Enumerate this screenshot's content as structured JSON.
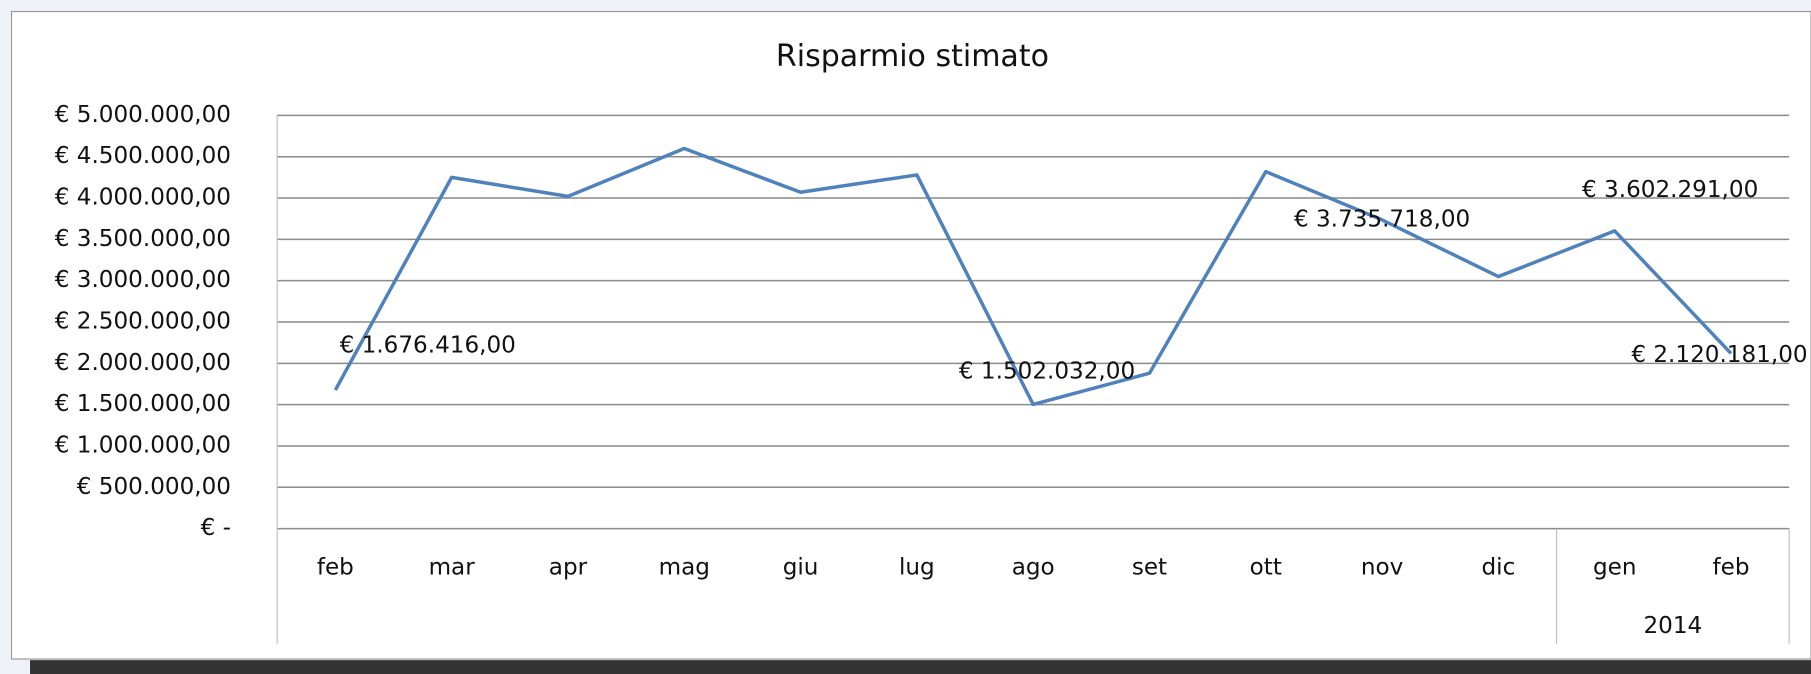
{
  "chart_data": {
    "type": "line",
    "title": "Risparmio stimato",
    "categories": [
      "feb",
      "mar",
      "apr",
      "mag",
      "giu",
      "lug",
      "ago",
      "set",
      "ott",
      "nov",
      "dic",
      "gen",
      "feb"
    ],
    "category_groups": [
      {
        "label": "2014",
        "from": 11
      }
    ],
    "series": [
      {
        "name": "Risparmio stimato",
        "color": "#4f81bd",
        "values": [
          1676416,
          4250000,
          4020000,
          4600000,
          4070000,
          4280000,
          1502032,
          1880000,
          4320000,
          3735718,
          3050000,
          3602291,
          2120181
        ],
        "value_labels": [
          "€ 1.676.416,00",
          null,
          null,
          null,
          null,
          null,
          "€ 1.502.032,00",
          null,
          null,
          "€ 3.735.718,00",
          null,
          "€ 3.602.291,00",
          "€ 2.120.181,00"
        ]
      }
    ],
    "ylim": [
      0,
      5000000
    ],
    "yticks": [
      {
        "value": 0,
        "label": "€ -"
      },
      {
        "value": 500000,
        "label": "€ 500.000,00"
      },
      {
        "value": 1000000,
        "label": "€ 1.000.000,00"
      },
      {
        "value": 1500000,
        "label": "€ 1.500.000,00"
      },
      {
        "value": 2000000,
        "label": "€ 2.000.000,00"
      },
      {
        "value": 2500000,
        "label": "€ 2.500.000,00"
      },
      {
        "value": 3000000,
        "label": "€ 3.000.000,00"
      },
      {
        "value": 3500000,
        "label": "€ 3.500.000,00"
      },
      {
        "value": 4000000,
        "label": "€ 4.000.000,00"
      },
      {
        "value": 4500000,
        "label": "€ 4.500.000,00"
      },
      {
        "value": 5000000,
        "label": "€ 5.000.000,00"
      }
    ],
    "grid": true
  }
}
